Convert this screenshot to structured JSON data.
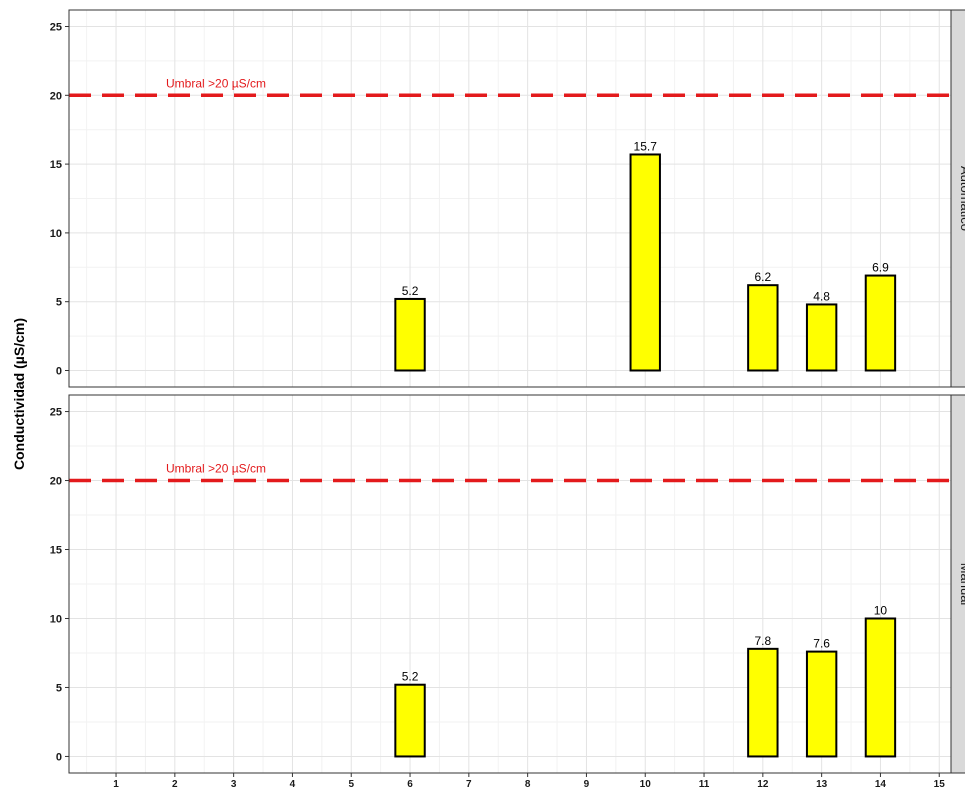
{
  "chart_data": {
    "type": "bar",
    "ylabel": "Conductividad (µS/cm)",
    "xlabel": "",
    "x_ticks": [
      1,
      2,
      3,
      4,
      5,
      6,
      7,
      8,
      9,
      10,
      11,
      12,
      13,
      14,
      15
    ],
    "xlim": [
      0.2,
      15.2
    ],
    "ylim": [
      -1.2,
      26.2
    ],
    "y_ticks": [
      0,
      5,
      10,
      15,
      20,
      25
    ],
    "grid": true,
    "colors": {
      "bar_fill": "#ffff00",
      "bar_stroke": "#000000",
      "threshold": "#e31a1c",
      "strip": "#d9d9d9"
    },
    "threshold": {
      "value": 20,
      "label": "Umbral >20 µS/cm"
    },
    "panels": [
      {
        "strip": "Automático",
        "x": [
          6,
          10,
          12,
          13,
          14
        ],
        "values": [
          5.2,
          15.7,
          6.2,
          4.8,
          6.9
        ],
        "labels": [
          "5.2",
          "15.7",
          "6.2",
          "4.8",
          "6.9"
        ]
      },
      {
        "strip": "Manual",
        "x": [
          6,
          12,
          13,
          14
        ],
        "values": [
          5.2,
          7.8,
          7.6,
          10
        ],
        "labels": [
          "5.2",
          "7.8",
          "7.6",
          "10"
        ]
      }
    ]
  }
}
